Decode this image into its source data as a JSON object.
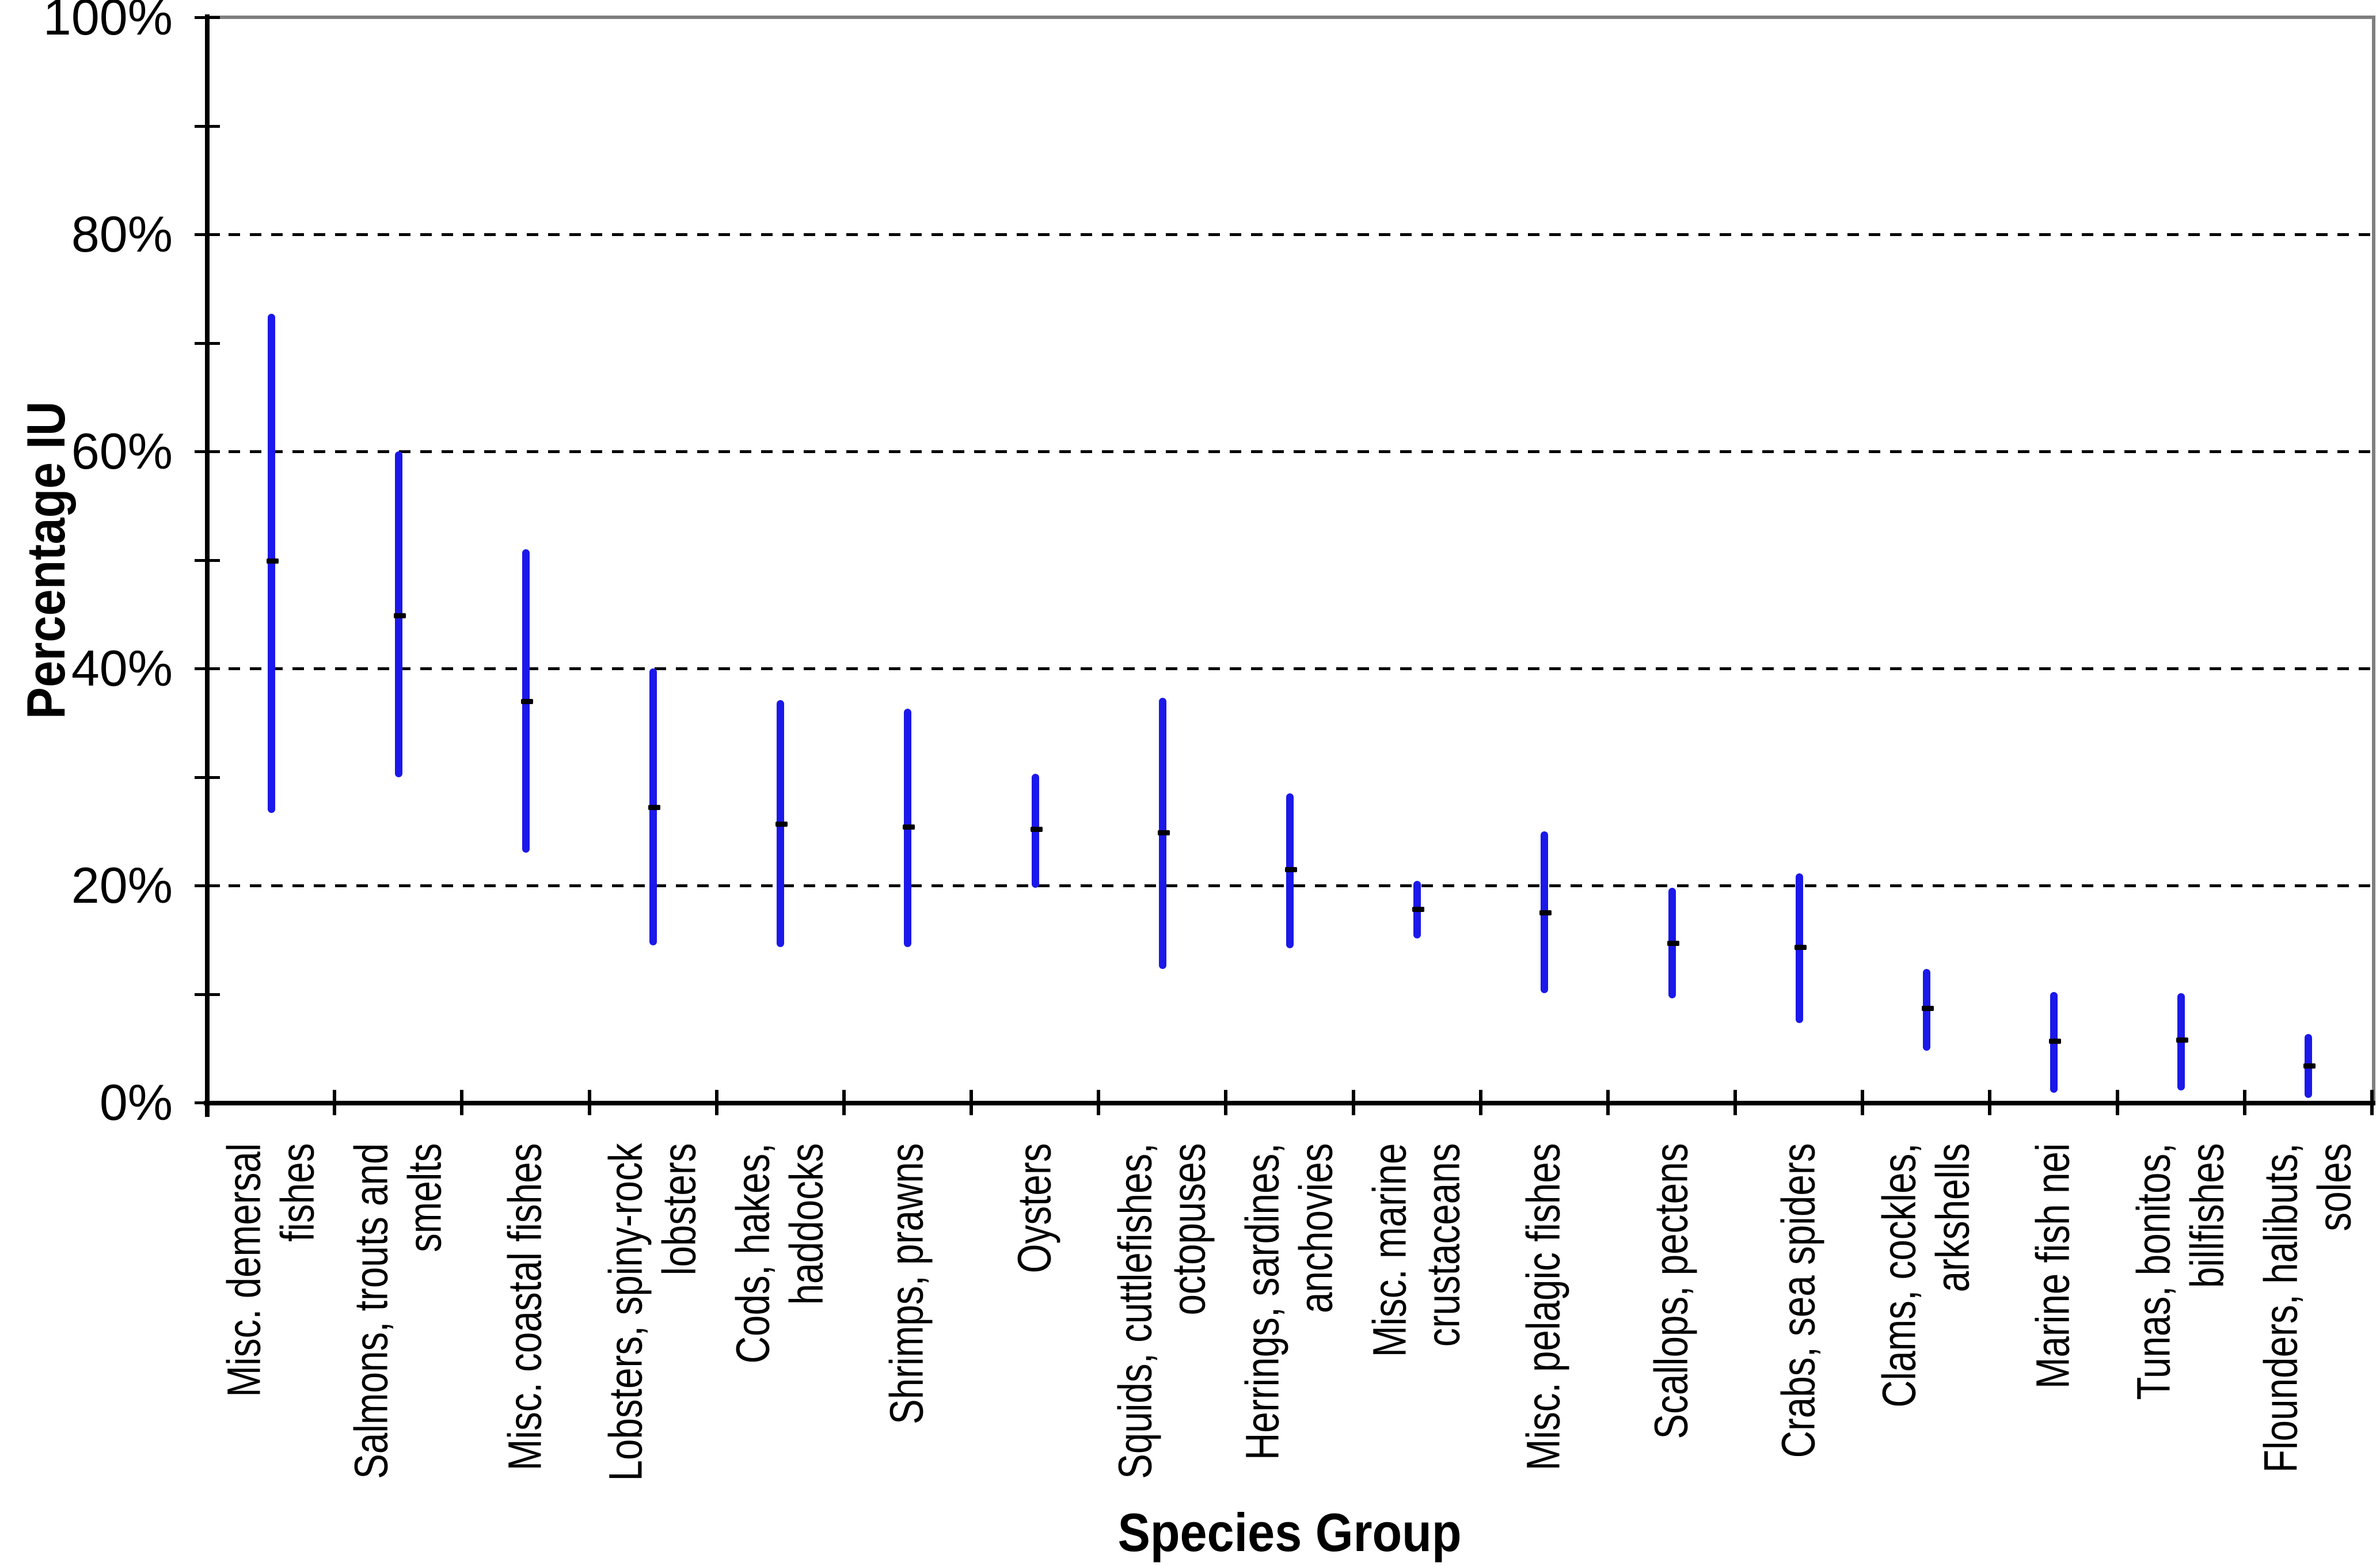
{
  "chart_data": {
    "type": "bar",
    "subtype": "vertical-range-bars-with-mean-marker",
    "title": "",
    "xlabel": "Species Group",
    "ylabel": "Percentage IU",
    "ylim": [
      0,
      100
    ],
    "y_major_tick_step_pct": 20,
    "y_minor_tick_step_pct": 10,
    "y_tick_labels": [
      "0%",
      "20%",
      "40%",
      "60%",
      "80%",
      "100%"
    ],
    "grid": "dashed horizontal gridlines at 20%, 40%, 60%, 80%; solid gray border at top (100%) and right",
    "legend_position": "none",
    "categories": [
      "Misc. demersal\nfishes",
      "Salmons, trouts and\nsmelts",
      "Misc. coastal fishes",
      "Lobsters, spiny-rock\nlobsters",
      "Cods, hakes,\nhaddocks",
      "Shrimps, prawns",
      "Oysters",
      "Squids, cuttlefishes,\noctopuses",
      "Herrings, sardines,\nanchovies",
      "Misc. marine\ncrustaceans",
      "Misc. pelagic fishes",
      "Scallops, pectens",
      "Crabs, sea spiders",
      "Clams, cockles,\narkshells",
      "Marine fish nei",
      "Tunas, bonitos,\nbillfishes",
      "Flounders, halibuts,\nsoles"
    ],
    "series": [
      {
        "name": "range_low_pct",
        "values": [
          26.7,
          30.0,
          23.0,
          14.5,
          14.3,
          14.3,
          19.8,
          12.3,
          14.2,
          15.1,
          10.1,
          9.6,
          7.3,
          4.8,
          0.9,
          1.1,
          0.4
        ]
      },
      {
        "name": "range_high_pct",
        "values": [
          72.7,
          60.0,
          51.0,
          40.0,
          37.1,
          36.3,
          30.3,
          37.3,
          28.5,
          20.4,
          25.0,
          19.8,
          21.1,
          12.3,
          10.2,
          10.1,
          6.3
        ]
      },
      {
        "name": "mean_marker_pct",
        "values": [
          49.9,
          44.9,
          37.0,
          27.2,
          25.7,
          25.4,
          25.2,
          24.9,
          21.5,
          17.8,
          17.5,
          14.7,
          14.3,
          8.7,
          5.7,
          5.8,
          3.4
        ]
      }
    ],
    "colors": {
      "bar": "#1b18ea",
      "mean_marker": "#000000",
      "gridline": "#000000",
      "axis": "#000000",
      "plot_border": "#7f7f7f",
      "background": "#ffffff",
      "text": "#000000"
    }
  }
}
